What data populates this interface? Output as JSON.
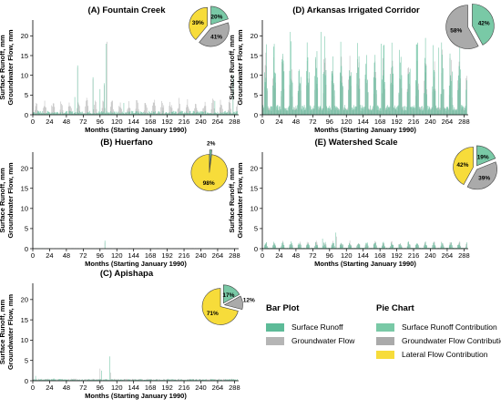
{
  "colors": {
    "surface": "#5dbb98",
    "groundwater": "#b5b5b5",
    "lateral": "#f7dc3a",
    "surface_pie": "#79c9a6",
    "groundwater_pie": "#aaaaaa"
  },
  "x_ticks": [
    0,
    24,
    48,
    72,
    96,
    120,
    144,
    168,
    192,
    216,
    240,
    264,
    288
  ],
  "y_ticks": [
    0,
    5,
    10,
    15,
    20
  ],
  "legend": {
    "bar_title": "Bar Plot",
    "bar_items": [
      "Surface Runoff",
      "Groundwater Flow"
    ],
    "pie_title": "Pie Chart",
    "pie_items": [
      "Surface Runoff Contribution",
      "Groundwater Flow  Contribution",
      "Lateral Flow  Contribution"
    ]
  },
  "chart_data": [
    {
      "id": "A",
      "type": "bar",
      "title": "(A) Fountain Creek",
      "xlabel": "Months (Starting January 1990)",
      "ylabel": [
        "Surface Runoff, mm",
        "Groundwater Flow, mm"
      ],
      "xlim": [
        0,
        294
      ],
      "ylim": [
        0,
        24
      ],
      "series": [
        {
          "name": "Surface Runoff",
          "pattern": "low",
          "base": 0.6,
          "peaks": {
            "60": 4.5,
            "64": 12.5,
            "86": 9.5,
            "96": 6.5,
            "102": 8.0,
            "105": 18.0,
            "130": 3.0,
            "260": 3.5,
            "286": 10.0
          }
        },
        {
          "name": "Groundwater Flow",
          "pattern": "seasonal",
          "base": 2.5,
          "peaks": {
            "64": 12.0,
            "86": 9.0,
            "102": 7.5,
            "106": 18.5,
            "286": 8.0
          }
        }
      ],
      "pie": [
        {
          "label": "Surface Runoff",
          "value": 20
        },
        {
          "label": "Groundwater Flow",
          "value": 41
        },
        {
          "label": "Lateral Flow",
          "value": 39
        }
      ]
    },
    {
      "id": "D",
      "type": "bar",
      "title": "(D) Arkansas Irrigated Corridor",
      "xlabel": "Months (Starting January 1990)",
      "ylabel": [
        "Surface Runoff, mm",
        "Groundwater Flow, mm"
      ],
      "xlim": [
        0,
        294
      ],
      "ylim": [
        0,
        24
      ],
      "series": [
        {
          "name": "Surface Runoff",
          "pattern": "seasonal",
          "base": 12.0,
          "peaks": {
            "40": 21.0,
            "84": 21.0,
            "112": 18.5,
            "170": 18.0,
            "252": 17.0
          }
        },
        {
          "name": "Groundwater Flow",
          "pattern": "seasonal",
          "base": 9.5,
          "peaks": {}
        }
      ],
      "pie": [
        {
          "label": "Surface Runoff",
          "value": 42
        },
        {
          "label": "Groundwater Flow",
          "value": 58
        }
      ]
    },
    {
      "id": "B",
      "type": "bar",
      "title": "(B) Huerfano",
      "xlabel": "Months (Starting January 1990)",
      "ylabel": [
        "Surface Runoff, mm",
        "Groundwater Flow, mm"
      ],
      "xlim": [
        0,
        294
      ],
      "ylim": [
        0,
        24
      ],
      "series": [
        {
          "name": "Surface Runoff",
          "pattern": "low",
          "base": 0.05,
          "peaks": {
            "103": 2.0
          }
        },
        {
          "name": "Groundwater Flow",
          "pattern": "low",
          "base": 0.08,
          "peaks": {
            "103": 1.5
          }
        }
      ],
      "pie": [
        {
          "label": "Surface Runoff",
          "value": 2
        },
        {
          "label": "Lateral Flow",
          "value": 98
        }
      ]
    },
    {
      "id": "E",
      "type": "bar",
      "title": "(E) Watershed Scale",
      "xlabel": "Months (Starting January 1990)",
      "ylabel": [
        "Surface Runoff, mm",
        "Groundwater Flow, mm"
      ],
      "xlim": [
        0,
        294
      ],
      "ylim": [
        0,
        24
      ],
      "series": [
        {
          "name": "Surface Runoff",
          "pattern": "seasonal",
          "base": 1.1,
          "peaks": {
            "105": 4.0,
            "86": 2.5
          }
        },
        {
          "name": "Groundwater Flow",
          "pattern": "seasonal",
          "base": 1.2,
          "peaks": {
            "106": 3.0
          }
        }
      ],
      "pie": [
        {
          "label": "Surface Runoff",
          "value": 19
        },
        {
          "label": "Groundwater Flow",
          "value": 39
        },
        {
          "label": "Lateral Flow",
          "value": 42
        }
      ]
    },
    {
      "id": "C",
      "type": "bar",
      "title": "(C) Apishapa",
      "xlabel": "Months (Starting January 1990)",
      "ylabel": [
        "Surface Runoff, mm",
        "Groundwater Flow, mm"
      ],
      "xlim": [
        0,
        294
      ],
      "ylim": [
        0,
        24
      ],
      "series": [
        {
          "name": "Surface Runoff",
          "pattern": "low",
          "base": 0.25,
          "peaks": {
            "4": 1.2,
            "98": 2.5,
            "110": 6.0,
            "30": 0.6
          }
        },
        {
          "name": "Groundwater Flow",
          "pattern": "low",
          "base": 0.3,
          "peaks": {
            "96": 3.0,
            "111": 2.0
          }
        }
      ],
      "pie": [
        {
          "label": "Surface Runoff",
          "value": 17
        },
        {
          "label": "Groundwater Flow",
          "value": 12
        },
        {
          "label": "Lateral Flow",
          "value": 71
        }
      ]
    }
  ]
}
